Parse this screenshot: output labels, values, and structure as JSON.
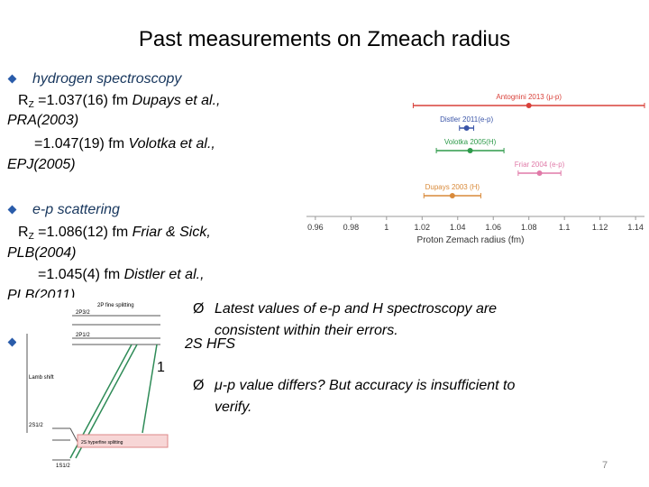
{
  "title": "Past measurements on Zmeach radius",
  "sections": [
    {
      "heading": "hydrogen spectroscopy",
      "lines": [
        {
          "symbol": "R",
          "sub": "Z",
          "value": "=1.037(16) fm",
          "ref": "Dupays et al.,",
          "journal": "PRA(2003)"
        },
        {
          "value": "=1.047(19) fm",
          "ref": "Volotka et al.,",
          "journal": "EPJ(2005)"
        }
      ]
    },
    {
      "heading": "e-p scattering",
      "lines": [
        {
          "symbol": "R",
          "sub": "Z",
          "value": "=1.086(12) fm",
          "ref": "Friar & Sick,",
          "journal": "PLB(2004)"
        },
        {
          "value": "=1.045(4) fm",
          "ref": "Distler et al.,",
          "journal": "PLB(2011)"
        }
      ]
    }
  ],
  "hfs_label": "2S HFS",
  "stray": "1",
  "conclusions": [
    {
      "bullet": "Ø",
      "lines": [
        "Latest values of e-p and H spectroscopy are",
        "consistent within their errors."
      ]
    },
    {
      "bullet": "Ø",
      "lines": [
        "μ-p value differs?  But accuracy is insufficient to",
        "verify."
      ]
    }
  ],
  "page_number": "7",
  "diagram": {
    "labels": [
      "2P fine splitting",
      "2P3/2",
      "2P1/2",
      "Lamb shift",
      "2S1/2",
      "2S hyperfine splitting",
      "1S1/2"
    ]
  },
  "chart_data": {
    "type": "errorbar",
    "xlabel": "Proton Zemach radius (fm)",
    "categories": [
      "Antognini 2013 (μ-p)",
      "Distler 2011(e-p)",
      "Volotka 2005(H)",
      "Friar 2004 (e-p)",
      "Dupays 2003 (H)"
    ],
    "values": [
      1.08,
      1.045,
      1.047,
      1.086,
      1.037
    ],
    "errors": [
      0.065,
      0.004,
      0.019,
      0.012,
      0.016
    ],
    "colors": [
      "#d9413a",
      "#3a55a8",
      "#2e9a4a",
      "#e07aa8",
      "#d98a3a"
    ],
    "xlim": [
      0.955,
      1.145
    ],
    "xticks": [
      0.96,
      0.98,
      1,
      1.02,
      1.04,
      1.06,
      1.08,
      1.1,
      1.12,
      1.14
    ]
  }
}
